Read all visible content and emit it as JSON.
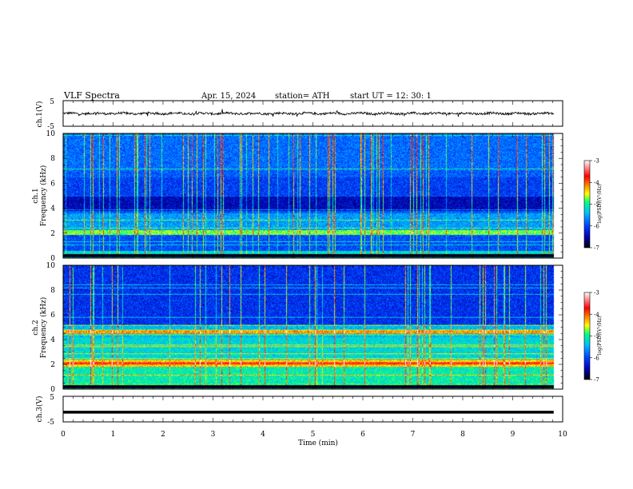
{
  "header": {
    "title": "VLF  Spectra",
    "date": "Apr. 15, 2024",
    "station": "station= ATH",
    "start": "start  UT  =    12: 30: 1"
  },
  "chart_data": [
    {
      "type": "line",
      "name": "ch1-waveform",
      "ylabel": "ch.1(V)",
      "ylim": [
        -5,
        5
      ],
      "yticks": [
        "5",
        "-5"
      ],
      "xlim": [
        0,
        10
      ],
      "description_signal": "noisy waveform around 0 V with spikes"
    },
    {
      "type": "heatmap",
      "name": "ch1-spectrogram",
      "ylabel_line1": "ch.1",
      "ylabel_line2": "Frequency (kHz)",
      "ylim": [
        0,
        10
      ],
      "yticks": [
        "0",
        "2",
        "4",
        "6",
        "8",
        "10"
      ],
      "xlim": [
        0,
        10
      ],
      "colorbar": {
        "label": "log(PSD)(V²/Hz)",
        "range": [
          -7,
          -3
        ],
        "ticks": [
          "-3",
          "-4",
          "-5",
          "-6",
          "-7"
        ]
      }
    },
    {
      "type": "heatmap",
      "name": "ch2-spectrogram",
      "ylabel_line1": "ch.2",
      "ylabel_line2": "Frequency (kHz)",
      "ylim": [
        0,
        10
      ],
      "yticks": [
        "0",
        "2",
        "4",
        "6",
        "8",
        "10"
      ],
      "xlim": [
        0,
        10
      ],
      "colorbar": {
        "label": "log(PSD)(V²/Hz)",
        "range": [
          -7,
          -3
        ],
        "ticks": [
          "-3",
          "-4",
          "-5",
          "-6",
          "-7"
        ]
      }
    },
    {
      "type": "line",
      "name": "ch3-waveform",
      "ylabel": "ch.3(V)",
      "ylim": [
        -5,
        5
      ],
      "yticks": [
        "5",
        "-5"
      ],
      "xlim": [
        0,
        10
      ],
      "value": -1.2
    }
  ],
  "xaxis": {
    "label": "Time  (min)",
    "ticks": [
      "0",
      "1",
      "2",
      "3",
      "4",
      "5",
      "6",
      "7",
      "8",
      "9",
      "10"
    ]
  },
  "colors": {
    "colormap": [
      "#000000",
      "#0000b0",
      "#0040ff",
      "#00c0ff",
      "#00ff80",
      "#ffff00",
      "#ff8000",
      "#ff0000",
      "#ffffff"
    ]
  }
}
